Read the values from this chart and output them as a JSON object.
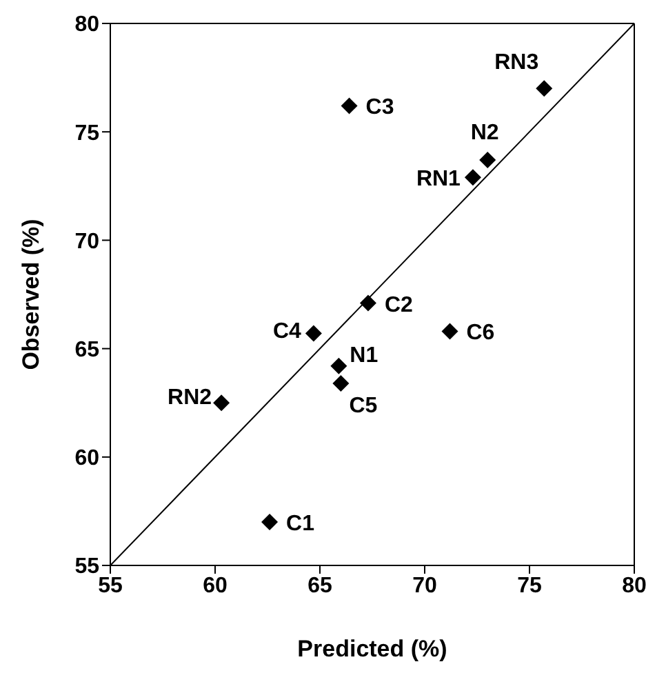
{
  "chart_data": {
    "type": "scatter",
    "xlabel": "Predicted (%)",
    "ylabel": "Observed (%)",
    "xlim": [
      55,
      80
    ],
    "ylim": [
      55,
      80
    ],
    "xticks": [
      55,
      60,
      65,
      70,
      75,
      80
    ],
    "yticks": [
      55,
      60,
      65,
      70,
      75,
      80
    ],
    "series": [
      {
        "color": "#000000",
        "marker": "diamond",
        "x": [
          75.7,
          66.4,
          73.0,
          72.3,
          67.3,
          64.7,
          71.2,
          65.9,
          66.0,
          60.3,
          62.6
        ],
        "values": [
          77.0,
          76.2,
          73.7,
          72.9,
          67.1,
          65.7,
          65.8,
          64.2,
          63.4,
          62.5,
          57.0
        ]
      },
      {
        "type": "line",
        "color": "#000000",
        "marker": "none",
        "x": [
          55,
          80
        ],
        "values": [
          55,
          80
        ]
      }
    ],
    "annotations": [
      {
        "text": "RN3",
        "x": 75.7,
        "y": 77.0
      },
      {
        "text": "C3",
        "x": 66.4,
        "y": 76.2
      },
      {
        "text": "N2",
        "x": 73.0,
        "y": 73.7
      },
      {
        "text": "RN1",
        "x": 72.3,
        "y": 72.9
      },
      {
        "text": "C2",
        "x": 67.3,
        "y": 67.1
      },
      {
        "text": "C4",
        "x": 64.7,
        "y": 65.7
      },
      {
        "text": "C6",
        "x": 71.2,
        "y": 65.8
      },
      {
        "text": "N1",
        "x": 65.9,
        "y": 64.2
      },
      {
        "text": "C5",
        "x": 66.0,
        "y": 63.4
      },
      {
        "text": "RN2",
        "x": 60.3,
        "y": 62.5
      },
      {
        "text": "C1",
        "x": 62.6,
        "y": 57.0
      }
    ]
  }
}
